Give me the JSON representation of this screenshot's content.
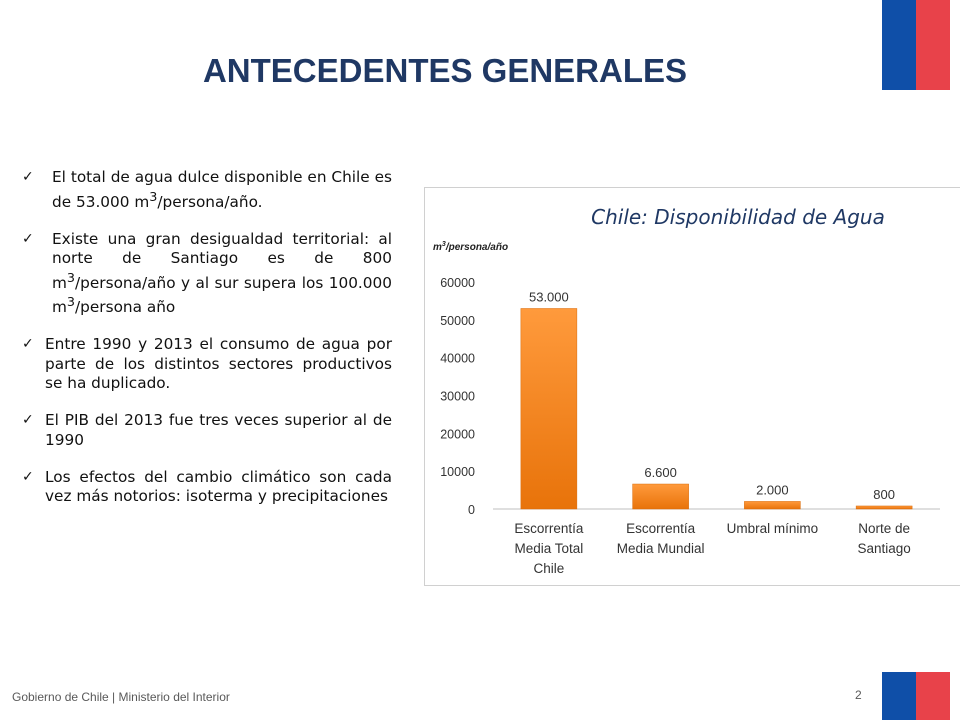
{
  "slide": {
    "title": "ANTECEDENTES GENERALES",
    "colors": {
      "flag_blue": "#0f4fa8",
      "flag_red": "#e8424a",
      "title": "#1f3864",
      "bar": "#ff8c1a"
    }
  },
  "bullets": [
    {
      "pre": "El total de agua dulce disponible en Chile es de 53.000 m",
      "sup": "3",
      "post": "/persona/año."
    },
    {
      "pre": "Existe una gran desigualdad territorial: al norte de Santiago es de 800 m",
      "sup": "3",
      "post": "/persona/año y al sur supera los 100.000 m",
      "sup2": "3",
      "post2": "/persona año"
    },
    {
      "text": "Entre 1990 y 2013 el consumo de agua por parte de los distintos sectores productivos se ha duplicado."
    },
    {
      "text": "El PIB del 2013 fue tres veces superior al de 1990"
    },
    {
      "text": "Los efectos del cambio climático son cada vez más notorios: isoterma y precipitaciones"
    }
  ],
  "chart_data": {
    "type": "bar",
    "title": "Chile: Disponibilidad de Agua",
    "ylabel_pre": "m",
    "ylabel_sup": "3",
    "ylabel_post": "/persona/año",
    "categories": [
      [
        "Escorrentía",
        "Media Total",
        "Chile"
      ],
      [
        "Escorrentía",
        "Media Mundial"
      ],
      [
        "Umbral mínimo"
      ],
      [
        "Norte de",
        "Santiago"
      ]
    ],
    "values": [
      53000,
      6600,
      2000,
      800
    ],
    "data_labels": [
      "53.000",
      "6.600",
      "2.000",
      "800"
    ],
    "ylim": [
      0,
      60000
    ],
    "yticks": [
      0,
      10000,
      20000,
      30000,
      40000,
      50000,
      60000
    ],
    "grid": false,
    "legend": "none"
  },
  "footer": {
    "text": "Gobierno de Chile | Ministerio del Interior",
    "page": "2"
  }
}
